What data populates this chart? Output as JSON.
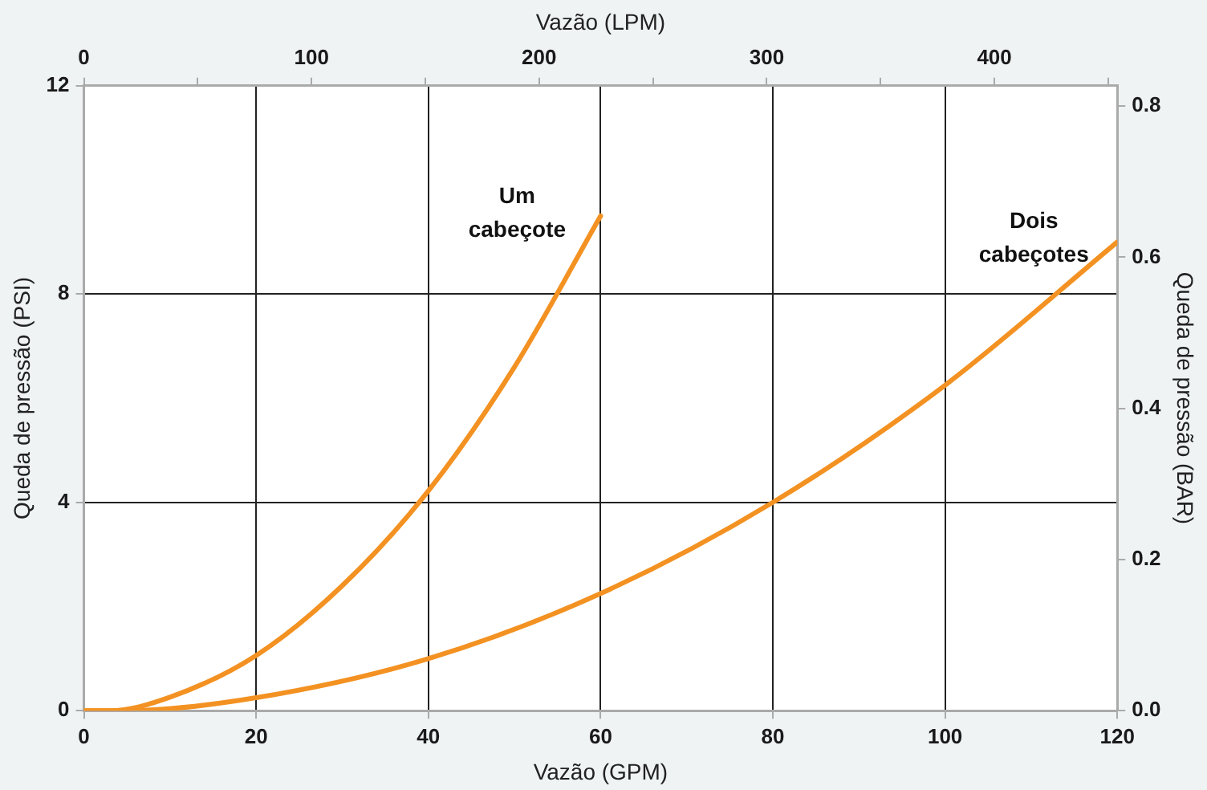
{
  "chart_data": {
    "type": "line",
    "xlabel": "Vazão (GPM)",
    "x2label": "Vazão (LPM)",
    "ylabel": "Queda de pressão (PSI)",
    "y2label": "Queda de pressão (BAR)",
    "series": [
      {
        "name": "Um cabeçote",
        "color": "#f39222",
        "x": [
          0,
          3,
          10,
          20,
          30,
          40,
          50,
          60
        ],
        "values": [
          0,
          0,
          0.26,
          1.06,
          2.4,
          4.22,
          6.6,
          9.5
        ]
      },
      {
        "name": "Dois cabeçotes",
        "color": "#f39222",
        "x": [
          0,
          5,
          20,
          40,
          60,
          80,
          100,
          120
        ],
        "values": [
          0,
          0,
          0.25,
          1.0,
          2.25,
          4.0,
          6.25,
          9.0
        ]
      }
    ],
    "xlim": [
      0,
      120
    ],
    "xticks": [
      0,
      20,
      40,
      60,
      80,
      100,
      120
    ],
    "x2lim": [
      0,
      454
    ],
    "x2ticks": [
      0,
      {
        "value": 50,
        "label": null
      },
      100,
      {
        "value": 150,
        "label": null
      },
      200,
      {
        "value": 250,
        "label": null
      },
      300,
      {
        "value": 350,
        "label": null
      },
      400,
      {
        "value": 450,
        "label": null
      }
    ],
    "ylim": [
      0,
      12
    ],
    "yticks": [
      0,
      4,
      8,
      12
    ],
    "y2lim": [
      0,
      0.827
    ],
    "y2ticks": [
      {
        "value": 0,
        "label": "0.0"
      },
      0.2,
      0.4,
      0.6,
      0.8
    ],
    "grid": true,
    "legend": false,
    "marker": "none",
    "line_style": "solid"
  }
}
